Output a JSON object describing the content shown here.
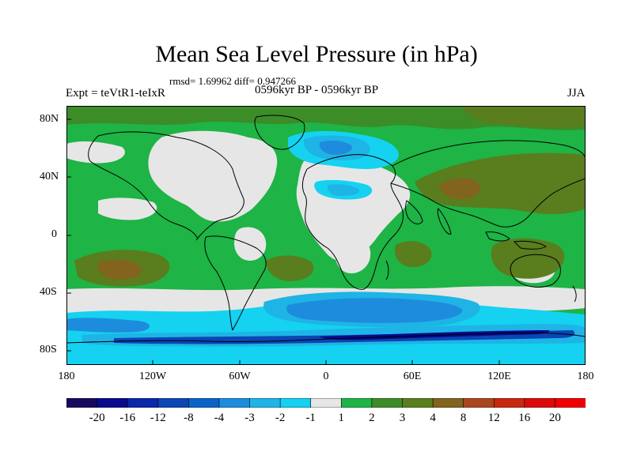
{
  "title": "Mean Sea Level Pressure (in hPa)",
  "stats": "rmsd= 1.69962 diff= 0.947266",
  "left_label": "Expt = teVtR1-teIxR",
  "center_label": "0596kyr BP - 0596kyr BP",
  "right_label": "JJA",
  "lat_ticks": [
    "80N",
    "40N",
    "0",
    "40S",
    "80S"
  ],
  "lon_ticks": [
    "180",
    "120W",
    "60W",
    "0",
    "60E",
    "120E",
    "180"
  ],
  "colorbar": {
    "labels": [
      "-20",
      "-16",
      "-12",
      "-8",
      "-4",
      "-3",
      "-2",
      "-1",
      "1",
      "2",
      "3",
      "4",
      "8",
      "12",
      "16",
      "20"
    ],
    "colors": [
      "#170a5e",
      "#0a0a8c",
      "#0a28a8",
      "#0a46b4",
      "#0a64c8",
      "#1e8cdc",
      "#1eb4e6",
      "#14d2f0",
      "#e6e6e6",
      "#1eb446",
      "#3c8c28",
      "#5a7d1e",
      "#82641e",
      "#aa461e",
      "#c8280f",
      "#dc0a0a",
      "#f00000"
    ]
  },
  "colors": {
    "land_outline": "#000000",
    "background": "#ffffff"
  }
}
